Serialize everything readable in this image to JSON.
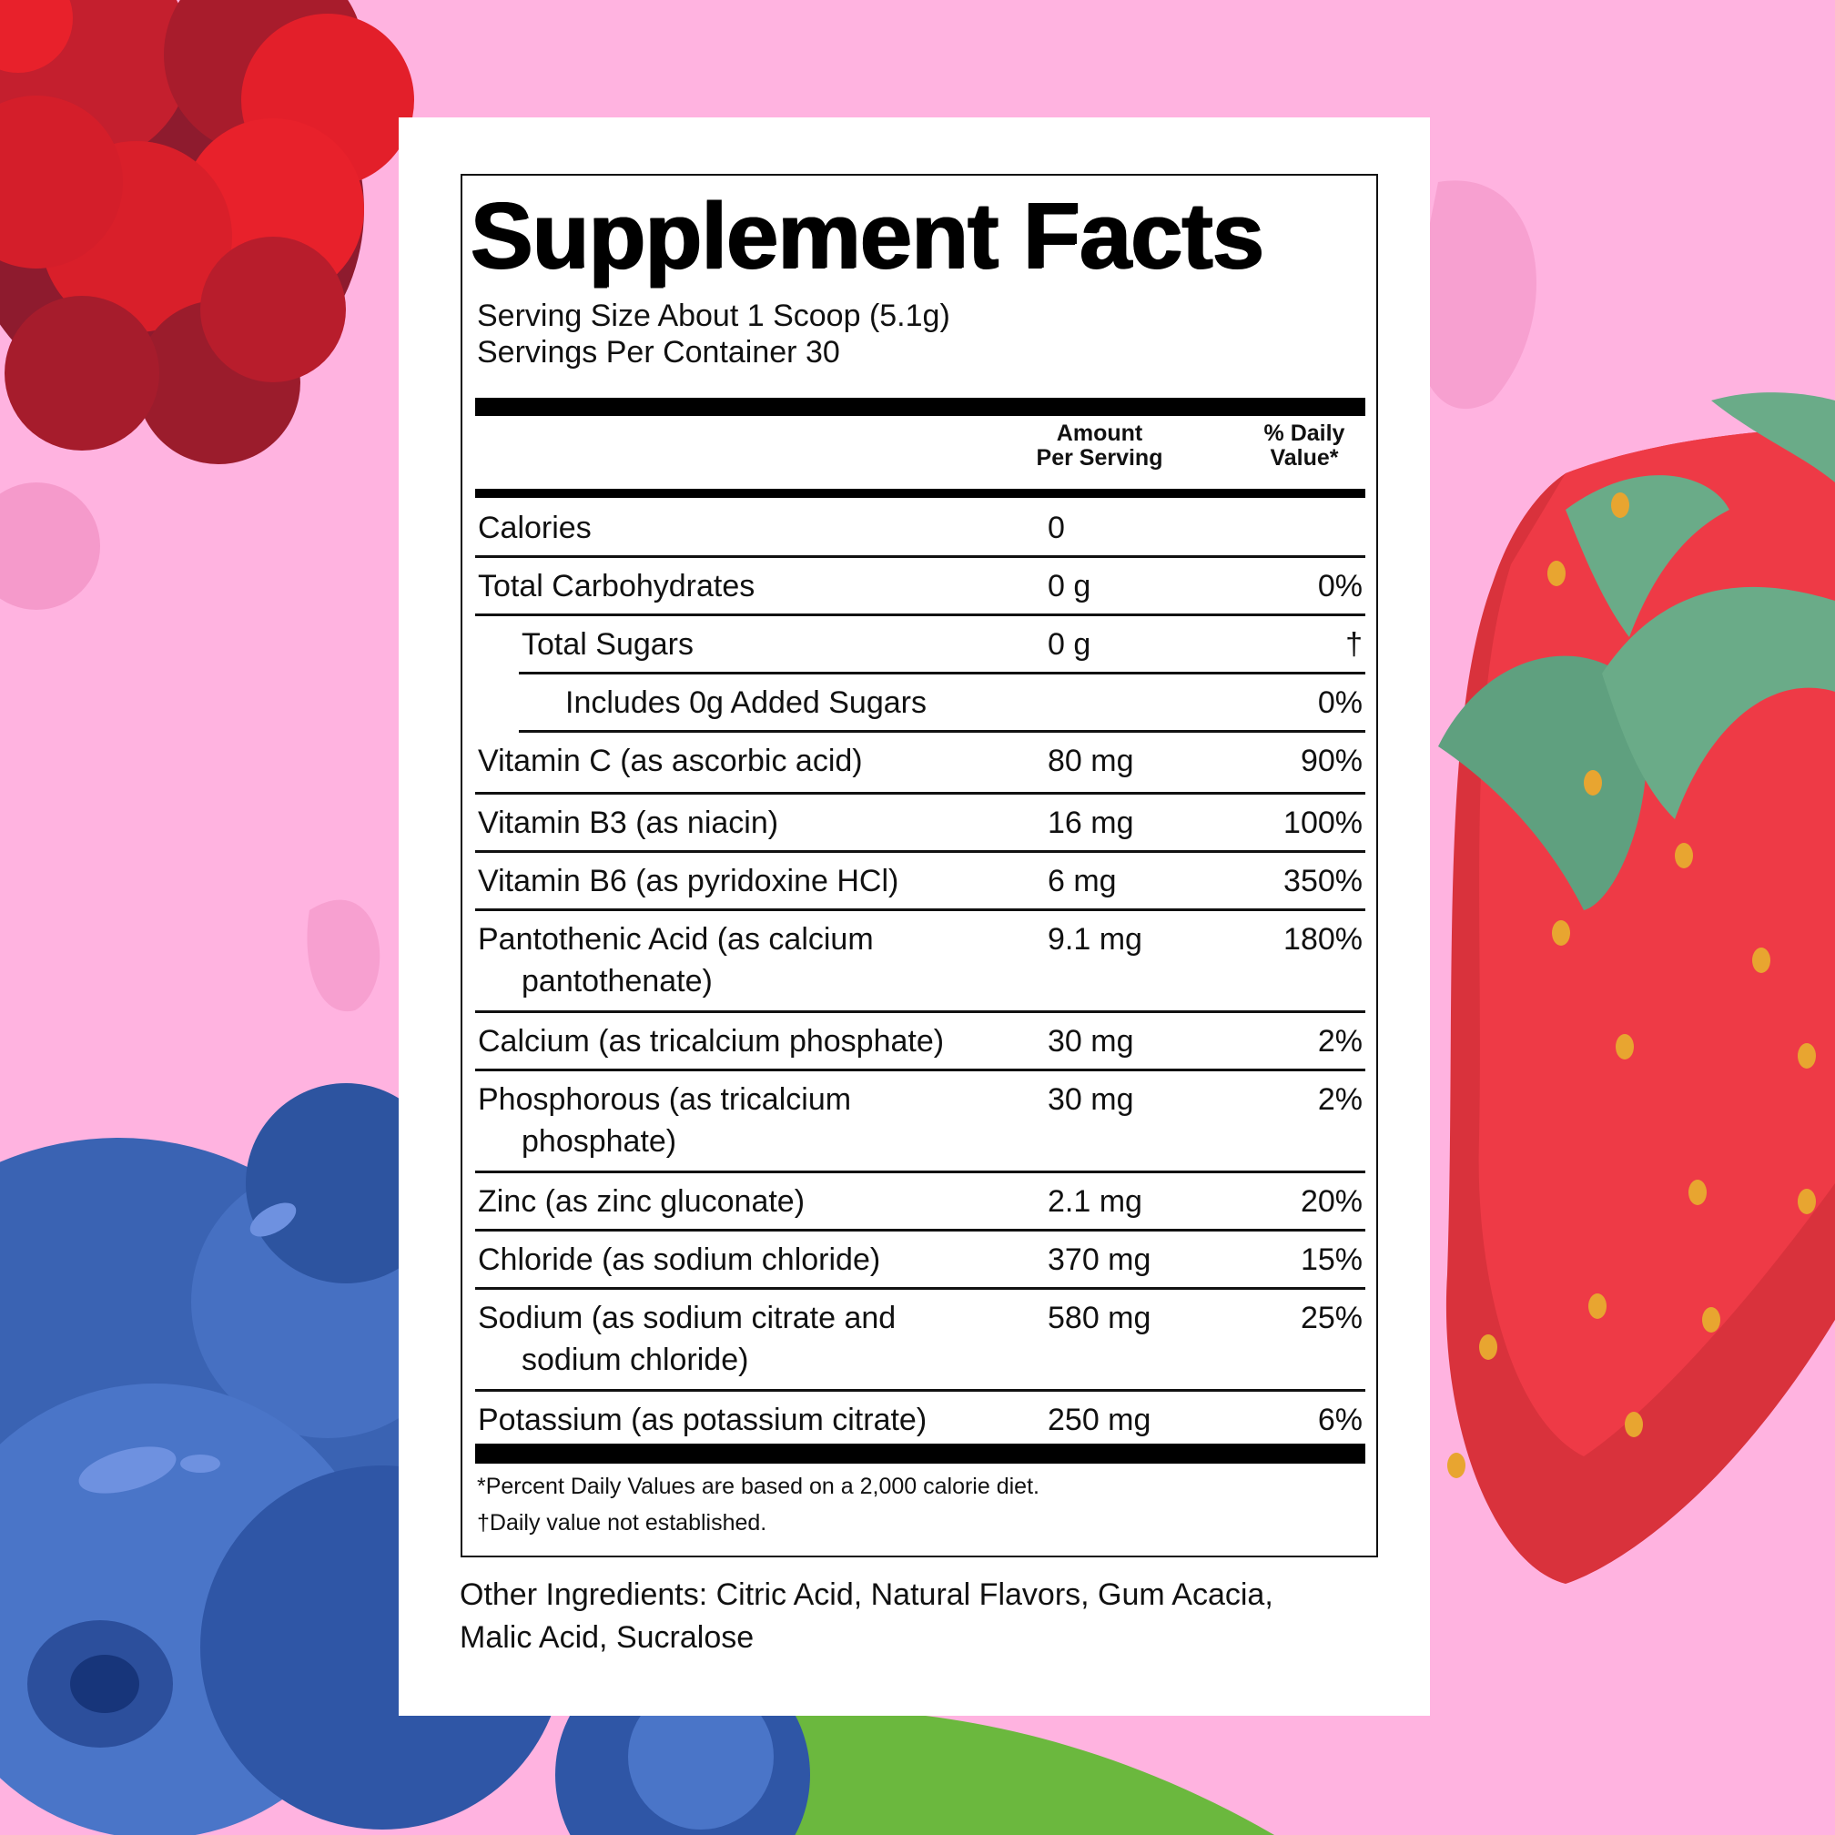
{
  "background": {
    "color": "#ffb3e0",
    "decorations": [
      "raspberry-illustration",
      "strawberry-illustration",
      "blueberry-illustration",
      "leaf-illustration"
    ]
  },
  "label": {
    "title": "Supplement Facts",
    "serving_size": "Serving Size About 1 Scoop (5.1g)",
    "servings_per_container": "Servings Per Container 30",
    "header_amount": [
      "Amount",
      "Per Serving"
    ],
    "header_daily_value": [
      "% Daily",
      "Value*"
    ],
    "rows": [
      {
        "name": "Calories",
        "amount": "0",
        "dv": ""
      },
      {
        "name": "Total Carbohydrates",
        "amount": "0 g",
        "dv": "0%"
      },
      {
        "name": "Total Sugars",
        "amount": "0 g",
        "dv": "†"
      },
      {
        "name": "Includes 0g Added Sugars",
        "amount": "",
        "dv": "0%"
      },
      {
        "name": "Vitamin C (as ascorbic acid)",
        "amount": "80 mg",
        "dv": "90%"
      },
      {
        "name": "Vitamin B3 (as niacin)",
        "amount": "16 mg",
        "dv": "100%"
      },
      {
        "name": "Vitamin B6 (as pyridoxine HCl)",
        "amount": "6 mg",
        "dv": "350%"
      },
      {
        "name": "Pantothenic Acid (as calcium",
        "name2": "pantothenate)",
        "amount": "9.1 mg",
        "dv": "180%"
      },
      {
        "name": "Calcium (as tricalcium phosphate)",
        "amount": "30 mg",
        "dv": "2%"
      },
      {
        "name": "Phosphorous (as tricalcium",
        "name2": "phosphate)",
        "amount": "30 mg",
        "dv": "2%"
      },
      {
        "name": "Zinc (as zinc gluconate)",
        "amount": "2.1 mg",
        "dv": "20%"
      },
      {
        "name": "Chloride (as sodium chloride)",
        "amount": "370 mg",
        "dv": "15%"
      },
      {
        "name": "Sodium (as sodium citrate and",
        "name2": "sodium chloride)",
        "amount": "580 mg",
        "dv": "25%"
      },
      {
        "name": "Potassium (as potassium citrate)",
        "amount": "250 mg",
        "dv": "6%"
      }
    ],
    "footnote1": "*Percent Daily Values are based on a 2,000 calorie diet.",
    "footnote2": "†Daily value not established."
  },
  "other_ingredients": {
    "line1": "Other Ingredients: Citric Acid, Natural Flavors, Gum Acacia,",
    "line2": "Malic Acid, Sucralose"
  }
}
